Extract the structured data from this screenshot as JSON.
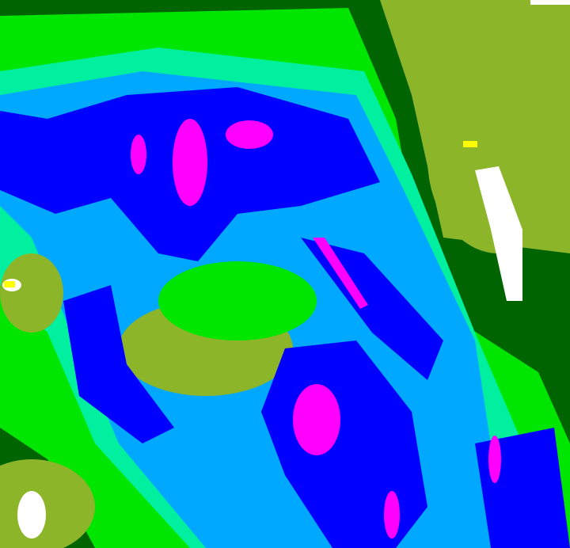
{
  "map": {
    "type": "classified raster field",
    "palette": {
      "olive": "#8db52a",
      "dark_green": "#006400",
      "green": "#00e600",
      "aquamarine": "#00f0a0",
      "sky_blue": "#00a8ff",
      "blue": "#0000ff",
      "magenta": "#ff00ff",
      "white": "#ffffff",
      "yellow": "#ffff00"
    }
  }
}
